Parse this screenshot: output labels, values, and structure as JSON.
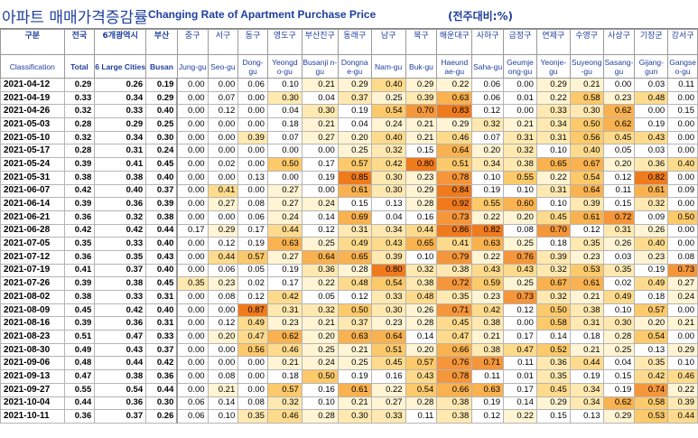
{
  "title": {
    "korean": "아파트 매매가격증감률",
    "english": "Changing Rate of Apartment Purchase Price",
    "unit": "(전주대비:%)"
  },
  "headers": [
    {
      "ko": "구분",
      "en": "Classification"
    },
    {
      "ko": "전국",
      "en": "Total"
    },
    {
      "ko": "6개광역시",
      "en": "6 Large Cities"
    },
    {
      "ko": "부산",
      "en": "Busan"
    },
    {
      "ko": "중구",
      "en": "Jung-gu"
    },
    {
      "ko": "서구",
      "en": "Seo-gu"
    },
    {
      "ko": "동구",
      "en": "Dong-gu"
    },
    {
      "ko": "영도구",
      "en": "Yeongd o-gu"
    },
    {
      "ko": "부산진구",
      "en": "Busanji n-gu"
    },
    {
      "ko": "동래구",
      "en": "Dongna e-gu"
    },
    {
      "ko": "남구",
      "en": "Nam-gu"
    },
    {
      "ko": "북구",
      "en": "Buk-gu"
    },
    {
      "ko": "해운대구",
      "en": "Haeund ae-gu"
    },
    {
      "ko": "사하구",
      "en": "Saha-gu"
    },
    {
      "ko": "금정구",
      "en": "Geumje ong-gu"
    },
    {
      "ko": "연제구",
      "en": "Yeonje-gu"
    },
    {
      "ko": "수영구",
      "en": "Suyeong -gu"
    },
    {
      "ko": "사상구",
      "en": "Sasang-gu"
    },
    {
      "ko": "기장군",
      "en": "Gijang-gun"
    },
    {
      "ko": "강서구",
      "en": "Gangse o-gu"
    }
  ],
  "rows": [
    {
      "date": "2021-04-12",
      "values": [
        "0.29",
        "0.26",
        "0.19",
        "0.00",
        "0.00",
        "0.06",
        "0.10",
        "0.21",
        "0.29",
        "0.40",
        "0.29",
        "0.22",
        "0.06",
        "0.00",
        "0.29",
        "0.21",
        "0.00",
        "0.03",
        "0.11"
      ]
    },
    {
      "date": "2021-04-19",
      "values": [
        "0.33",
        "0.34",
        "0.29",
        "0.00",
        "0.07",
        "0.00",
        "0.30",
        "0.04",
        "0.37",
        "0.25",
        "0.39",
        "0.63",
        "0.06",
        "0.01",
        "0.22",
        "0.58",
        "0.23",
        "0.48",
        "0.00"
      ]
    },
    {
      "date": "2021-04-26",
      "values": [
        "0.32",
        "0.33",
        "0.40",
        "0.00",
        "0.12",
        "0.00",
        "0.04",
        "0.30",
        "0.19",
        "0.54",
        "0.70",
        "0.83",
        "0.12",
        "0.00",
        "0.33",
        "0.30",
        "0.62",
        "0.00",
        "0.15"
      ]
    },
    {
      "date": "2021-05-03",
      "values": [
        "0.28",
        "0.29",
        "0.25",
        "0.00",
        "0.00",
        "0.00",
        "0.18",
        "0.21",
        "0.04",
        "0.24",
        "0.21",
        "0.29",
        "0.32",
        "0.21",
        "0.34",
        "0.50",
        "0.62",
        "0.19",
        "0.00"
      ]
    },
    {
      "date": "2021-05-10",
      "values": [
        "0.32",
        "0.34",
        "0.30",
        "0.00",
        "0.00",
        "0.39",
        "0.07",
        "0.27",
        "0.20",
        "0.40",
        "0.21",
        "0.46",
        "0.07",
        "0.31",
        "0.31",
        "0.56",
        "0.45",
        "0.43",
        "0.00"
      ]
    },
    {
      "date": "2021-05-17",
      "values": [
        "0.28",
        "0.31",
        "0.24",
        "0.00",
        "0.00",
        "0.00",
        "0.00",
        "0.00",
        "0.25",
        "0.32",
        "0.15",
        "0.64",
        "0.20",
        "0.32",
        "0.10",
        "0.40",
        "0.05",
        "0.03",
        "0.00"
      ]
    },
    {
      "date": "2021-05-24",
      "values": [
        "0.39",
        "0.41",
        "0.45",
        "0.00",
        "0.02",
        "0.00",
        "0.50",
        "0.17",
        "0.57",
        "0.42",
        "0.80",
        "0.51",
        "0.34",
        "0.38",
        "0.65",
        "0.67",
        "0.20",
        "0.36",
        "0.40"
      ]
    },
    {
      "date": "2021-05-31",
      "values": [
        "0.38",
        "0.38",
        "0.40",
        "0.00",
        "0.00",
        "0.13",
        "0.00",
        "0.19",
        "0.85",
        "0.30",
        "0.23",
        "0.78",
        "0.10",
        "0.55",
        "0.22",
        "0.54",
        "0.12",
        "0.82",
        "0.00"
      ]
    },
    {
      "date": "2021-06-07",
      "values": [
        "0.42",
        "0.40",
        "0.37",
        "0.00",
        "0.41",
        "0.00",
        "0.27",
        "0.00",
        "0.61",
        "0.30",
        "0.29",
        "0.84",
        "0.19",
        "0.10",
        "0.31",
        "0.64",
        "0.11",
        "0.61",
        "0.09"
      ]
    },
    {
      "date": "2021-06-14",
      "values": [
        "0.39",
        "0.36",
        "0.39",
        "0.00",
        "0.27",
        "0.08",
        "0.27",
        "0.24",
        "0.15",
        "0.13",
        "0.28",
        "0.92",
        "0.55",
        "0.60",
        "0.10",
        "0.39",
        "0.15",
        "0.32",
        "0.00"
      ]
    },
    {
      "date": "2021-06-21",
      "values": [
        "0.36",
        "0.32",
        "0.38",
        "0.00",
        "0.00",
        "0.06",
        "0.24",
        "0.14",
        "0.69",
        "0.04",
        "0.16",
        "0.73",
        "0.22",
        "0.20",
        "0.45",
        "0.61",
        "0.72",
        "0.09",
        "0.50"
      ]
    },
    {
      "date": "2021-06-28",
      "values": [
        "0.42",
        "0.42",
        "0.44",
        "0.17",
        "0.29",
        "0.17",
        "0.44",
        "0.12",
        "0.31",
        "0.34",
        "0.44",
        "0.86",
        "0.82",
        "0.08",
        "0.70",
        "0.12",
        "0.31",
        "0.26",
        "0.00"
      ]
    },
    {
      "date": "2021-07-05",
      "values": [
        "0.35",
        "0.33",
        "0.40",
        "0.00",
        "0.12",
        "0.19",
        "0.63",
        "0.25",
        "0.49",
        "0.43",
        "0.65",
        "0.41",
        "0.63",
        "0.25",
        "0.18",
        "0.35",
        "0.26",
        "0.40",
        "0.00"
      ]
    },
    {
      "date": "2021-07-12",
      "values": [
        "0.36",
        "0.35",
        "0.43",
        "0.00",
        "0.44",
        "0.57",
        "0.27",
        "0.64",
        "0.65",
        "0.39",
        "0.10",
        "0.79",
        "0.22",
        "0.76",
        "0.39",
        "0.23",
        "0.03",
        "0.23",
        "0.08"
      ]
    },
    {
      "date": "2021-07-19",
      "values": [
        "0.41",
        "0.37",
        "0.40",
        "0.00",
        "0.06",
        "0.05",
        "0.19",
        "0.36",
        "0.28",
        "0.80",
        "0.32",
        "0.38",
        "0.43",
        "0.43",
        "0.32",
        "0.53",
        "0.35",
        "0.19",
        "0.73"
      ]
    },
    {
      "date": "2021-07-26",
      "values": [
        "0.39",
        "0.38",
        "0.45",
        "0.35",
        "0.23",
        "0.02",
        "0.17",
        "0.22",
        "0.48",
        "0.54",
        "0.38",
        "0.72",
        "0.59",
        "0.25",
        "0.67",
        "0.61",
        "0.02",
        "0.49",
        "0.27"
      ]
    },
    {
      "date": "2021-08-02",
      "values": [
        "0.38",
        "0.33",
        "0.31",
        "0.00",
        "0.08",
        "0.12",
        "0.42",
        "0.05",
        "0.12",
        "0.33",
        "0.48",
        "0.35",
        "0.23",
        "0.73",
        "0.32",
        "0.21",
        "0.49",
        "0.18",
        "0.24"
      ]
    },
    {
      "date": "2021-08-09",
      "values": [
        "0.45",
        "0.42",
        "0.40",
        "0.00",
        "0.00",
        "0.87",
        "0.31",
        "0.32",
        "0.50",
        "0.30",
        "0.26",
        "0.71",
        "0.42",
        "0.12",
        "0.50",
        "0.38",
        "0.10",
        "0.57",
        "0.00"
      ]
    },
    {
      "date": "2021-08-16",
      "values": [
        "0.39",
        "0.36",
        "0.31",
        "0.00",
        "0.12",
        "0.49",
        "0.23",
        "0.21",
        "0.37",
        "0.23",
        "0.28",
        "0.45",
        "0.38",
        "0.00",
        "0.58",
        "0.31",
        "0.30",
        "0.20",
        "0.21"
      ]
    },
    {
      "date": "2021-08-23",
      "values": [
        "0.51",
        "0.47",
        "0.33",
        "0.00",
        "0.20",
        "0.47",
        "0.62",
        "0.20",
        "0.63",
        "0.64",
        "0.14",
        "0.47",
        "0.21",
        "0.17",
        "0.14",
        "0.18",
        "0.28",
        "0.54",
        "0.00"
      ]
    },
    {
      "date": "2021-08-30",
      "values": [
        "0.49",
        "0.43",
        "0.37",
        "0.00",
        "0.00",
        "0.56",
        "0.46",
        "0.25",
        "0.21",
        "0.51",
        "0.20",
        "0.66",
        "0.38",
        "0.47",
        "0.52",
        "0.21",
        "0.25",
        "0.13",
        "0.29"
      ]
    },
    {
      "date": "2021-09-06",
      "values": [
        "0.48",
        "0.44",
        "0.42",
        "0.00",
        "0.00",
        "0.00",
        "0.21",
        "0.24",
        "0.25",
        "0.45",
        "0.57",
        "0.76",
        "0.71",
        "0.11",
        "0.36",
        "0.44",
        "0.04",
        "0.35",
        "0.10"
      ]
    },
    {
      "date": "2021-09-13",
      "values": [
        "0.47",
        "0.38",
        "0.36",
        "0.00",
        "0.08",
        "0.00",
        "0.18",
        "0.50",
        "0.19",
        "0.16",
        "0.43",
        "0.78",
        "0.11",
        "0.01",
        "0.35",
        "0.19",
        "0.15",
        "0.42",
        "0.46"
      ]
    },
    {
      "date": "2021-09-27",
      "values": [
        "0.55",
        "0.54",
        "0.44",
        "0.00",
        "0.21",
        "0.00",
        "0.57",
        "0.16",
        "0.61",
        "0.22",
        "0.54",
        "0.66",
        "0.63",
        "0.17",
        "0.45",
        "0.34",
        "0.19",
        "0.74",
        "0.22"
      ]
    },
    {
      "date": "2021-10-04",
      "values": [
        "0.44",
        "0.36",
        "0.30",
        "0.06",
        "0.14",
        "0.08",
        "0.32",
        "0.10",
        "0.21",
        "0.27",
        "0.28",
        "0.38",
        "0.19",
        "0.14",
        "0.29",
        "0.34",
        "0.62",
        "0.58",
        "0.39"
      ]
    },
    {
      "date": "2021-10-11",
      "values": [
        "0.36",
        "0.37",
        "0.26",
        "0.06",
        "0.10",
        "0.35",
        "0.46",
        "0.28",
        "0.30",
        "0.33",
        "0.11",
        "0.38",
        "0.12",
        "0.22",
        "0.15",
        "0.13",
        "0.29",
        "0.53",
        "0.44"
      ]
    }
  ]
}
